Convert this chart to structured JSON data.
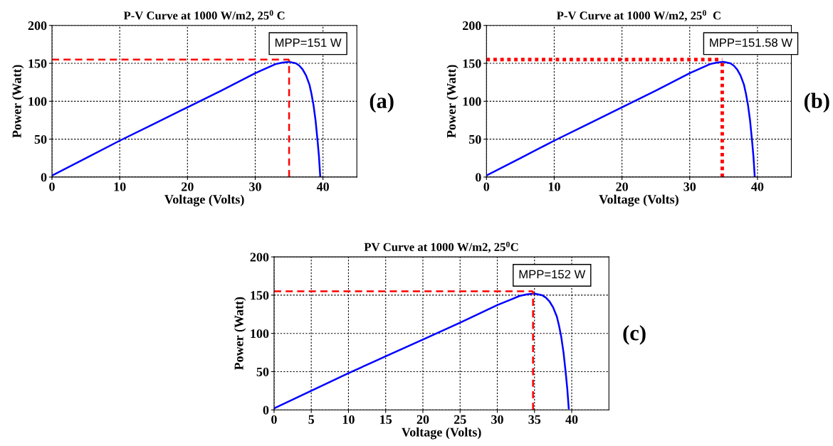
{
  "chart_data": [
    {
      "type": "line",
      "title": "P-V Curve at 1000 W/m2, 25$^{0}$ C",
      "xlabel": "Voltage (Volts)",
      "ylabel": "Power (Watt)",
      "xlim": [
        0,
        45
      ],
      "ylim": [
        0,
        200
      ],
      "xticks": [
        0,
        10,
        20,
        30,
        40
      ],
      "yticks": [
        0,
        50,
        100,
        150,
        200
      ],
      "grid": true,
      "marker": "none",
      "annotations": [
        "MPP=151 W",
        "(a)"
      ],
      "series": [
        {
          "color": "#0000ff",
          "line_style": "solid",
          "x": [
            0,
            5,
            10,
            15,
            20,
            25,
            30,
            32,
            33,
            34,
            35,
            36,
            36.5,
            37,
            37.5,
            38,
            38.3,
            38.6,
            38.9,
            39.2,
            39.4,
            39.6
          ],
          "values": [
            2,
            25,
            48,
            70,
            92,
            114,
            137,
            145,
            149,
            151,
            152,
            150,
            147,
            142,
            134,
            122,
            110,
            95,
            75,
            48,
            28,
            0
          ]
        },
        {
          "color": "#ff0000",
          "line_style": "dashed",
          "x": [
            0,
            35
          ],
          "values": [
            155,
            155
          ]
        },
        {
          "color": "#ff0000",
          "line_style": "dashed",
          "x": [
            35,
            35
          ],
          "values": [
            0,
            155
          ]
        }
      ]
    },
    {
      "type": "line",
      "title": "P-V Curve at 1000 W/m2, 25$^{0}$  C",
      "xlabel": "Voltage (Volts)",
      "ylabel": "Power (Watt)",
      "xlim": [
        0,
        45
      ],
      "ylim": [
        0,
        200
      ],
      "xticks": [
        0,
        10,
        20,
        30,
        40
      ],
      "yticks": [
        0,
        50,
        100,
        150,
        200
      ],
      "grid": true,
      "marker": "none",
      "annotations": [
        "MPP=151.58 W",
        "(b)"
      ],
      "series": [
        {
          "color": "#0000ff",
          "line_style": "solid",
          "x": [
            0,
            5,
            10,
            15,
            20,
            25,
            30,
            32,
            33,
            34,
            35,
            36,
            36.5,
            37,
            37.5,
            38,
            38.3,
            38.6,
            38.9,
            39.2,
            39.4,
            39.6
          ],
          "values": [
            2,
            25,
            48,
            70,
            92,
            114,
            137,
            145,
            149,
            151,
            152,
            150,
            147,
            142,
            134,
            122,
            110,
            95,
            75,
            48,
            28,
            0
          ]
        },
        {
          "color": "#ff0000",
          "line_style": "dotted",
          "x": [
            0,
            34.8
          ],
          "values": [
            155,
            155
          ]
        },
        {
          "color": "#ff0000",
          "line_style": "dotted",
          "x": [
            34.8,
            34.8
          ],
          "values": [
            0,
            155
          ]
        }
      ]
    },
    {
      "type": "line",
      "title": "PV Curve at 1000 W/m2, 25$^{0}$C",
      "xlabel": "Voltage (Volts)",
      "ylabel": "Power (Watt)",
      "xlim": [
        0,
        45
      ],
      "ylim": [
        0,
        200
      ],
      "xticks": [
        0,
        5,
        10,
        15,
        20,
        25,
        30,
        35,
        40
      ],
      "yticks": [
        0,
        50,
        100,
        150,
        200
      ],
      "grid": true,
      "marker": "none",
      "annotations": [
        "MPP=152 W",
        "(c)"
      ],
      "series": [
        {
          "color": "#0000ff",
          "line_style": "solid",
          "x": [
            0,
            5,
            10,
            15,
            20,
            25,
            30,
            32,
            33,
            34,
            35,
            36,
            36.5,
            37,
            37.5,
            38,
            38.3,
            38.6,
            38.9,
            39.2,
            39.4,
            39.6
          ],
          "values": [
            2,
            25,
            48,
            70,
            92,
            114,
            137,
            145,
            149,
            151,
            152,
            150,
            147,
            142,
            134,
            122,
            110,
            95,
            75,
            48,
            28,
            2
          ]
        },
        {
          "color": "#ff0000",
          "line_style": "dashed",
          "x": [
            0,
            34.8
          ],
          "values": [
            155,
            155
          ]
        },
        {
          "color": "#ff0000",
          "line_style": "dashed",
          "x": [
            34.8,
            34.8
          ],
          "values": [
            0,
            155
          ]
        }
      ]
    }
  ]
}
